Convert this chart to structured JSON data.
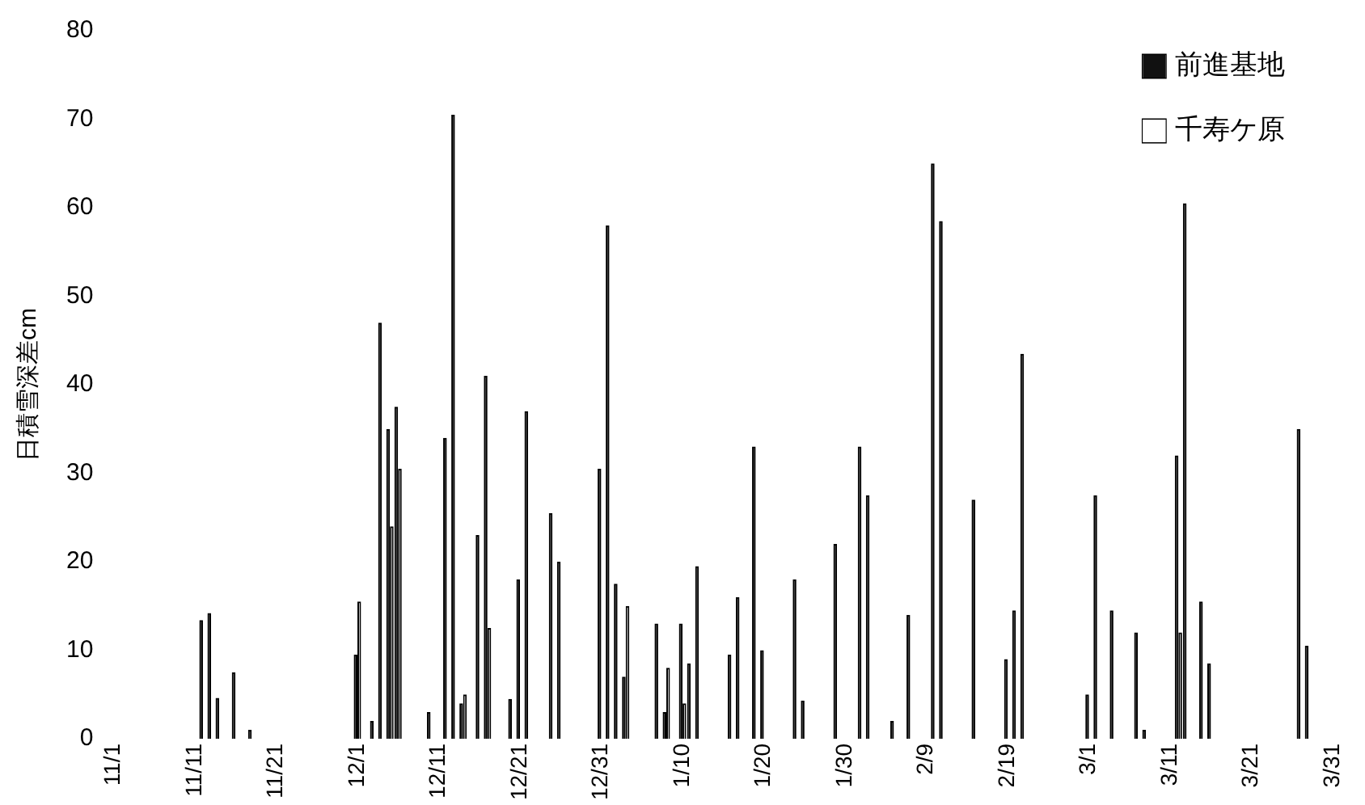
{
  "chart_data": {
    "type": "bar",
    "ylabel": "日積雪深差cm",
    "categories": [
      "11/1",
      null,
      null,
      null,
      null,
      null,
      null,
      null,
      null,
      null,
      "11/11",
      null,
      null,
      null,
      null,
      null,
      null,
      null,
      null,
      null,
      "11/21",
      null,
      null,
      null,
      null,
      null,
      null,
      null,
      null,
      null,
      "12/1",
      null,
      null,
      null,
      null,
      null,
      null,
      null,
      null,
      null,
      "12/11",
      null,
      null,
      null,
      null,
      null,
      null,
      null,
      null,
      null,
      "12/21",
      null,
      null,
      null,
      null,
      null,
      null,
      null,
      null,
      null,
      "12/31",
      null,
      null,
      null,
      null,
      null,
      null,
      null,
      null,
      null,
      "1/10",
      null,
      null,
      null,
      null,
      null,
      null,
      null,
      null,
      null,
      "1/20",
      null,
      null,
      null,
      null,
      null,
      null,
      null,
      null,
      null,
      "1/30",
      null,
      null,
      null,
      null,
      null,
      null,
      null,
      null,
      null,
      "2/9",
      null,
      null,
      null,
      null,
      null,
      null,
      null,
      null,
      null,
      "2/19",
      null,
      null,
      null,
      null,
      null,
      null,
      null,
      null,
      null,
      "3/1",
      null,
      null,
      null,
      null,
      null,
      null,
      null,
      null,
      null,
      "3/11",
      null,
      null,
      null,
      null,
      null,
      null,
      null,
      null,
      null,
      "3/21",
      null,
      null,
      null,
      null,
      null,
      null,
      null,
      null,
      null,
      "3/31"
    ],
    "series": [
      {
        "name": "前進基地",
        "color": "#111111",
        "values": [
          null,
          null,
          null,
          null,
          null,
          null,
          null,
          null,
          null,
          null,
          null,
          13.4,
          14.2,
          4.6,
          0,
          7.5,
          0,
          1,
          0,
          0,
          0,
          0,
          0,
          0,
          0,
          0,
          0,
          0,
          0,
          0,
          9.5,
          0,
          2,
          47,
          35,
          37.5,
          0,
          0,
          0,
          3,
          0,
          34,
          70.5,
          4,
          0,
          23,
          41,
          0,
          0,
          4.5,
          18,
          37,
          0,
          0,
          25.5,
          20,
          0,
          0,
          0,
          0,
          30.5,
          58,
          17.5,
          7,
          0,
          0,
          0,
          13,
          3,
          0,
          13,
          8.5,
          19.5,
          0,
          0,
          0,
          9.5,
          16,
          0,
          33,
          10,
          0,
          0,
          0,
          18,
          4.3,
          0,
          0,
          0,
          22,
          0,
          0,
          33,
          27.5,
          0,
          0,
          2,
          0,
          14,
          0,
          0,
          65,
          58.5,
          0,
          0,
          0,
          27,
          0,
          0,
          0,
          9,
          14.5,
          43.5,
          0,
          0,
          0,
          0,
          0,
          0,
          0,
          5,
          27.5,
          0,
          14.5,
          0,
          0,
          12,
          1,
          0,
          0,
          0,
          32,
          60.5,
          0,
          15.5,
          8.5,
          0,
          0,
          0,
          0,
          0,
          0,
          0,
          0,
          0,
          0,
          35,
          10.5,
          0,
          0,
          0
        ]
      },
      {
        "name": "千寿ケ原",
        "color": "#ffffff",
        "values": [
          null,
          null,
          null,
          null,
          null,
          null,
          null,
          null,
          null,
          null,
          null,
          0,
          0,
          0,
          0,
          0,
          0,
          0,
          0,
          0,
          0,
          0,
          0,
          0,
          0,
          0,
          0,
          0,
          0,
          0,
          15.5,
          0,
          0,
          0,
          24,
          30.5,
          0,
          0,
          0,
          0,
          0,
          0,
          0,
          5,
          0,
          0,
          12.5,
          0,
          0,
          0,
          0,
          0,
          0,
          0,
          0,
          0,
          0,
          0,
          0,
          0,
          0,
          0,
          0,
          15,
          0,
          0,
          0,
          0,
          8,
          0,
          4,
          0,
          0,
          0,
          0,
          0,
          0,
          0,
          0,
          0,
          0,
          0,
          0,
          0,
          0,
          0,
          0,
          0,
          0,
          0,
          0,
          0,
          0,
          0,
          0,
          0,
          0,
          0,
          0,
          0,
          0,
          0,
          0,
          0,
          0,
          0,
          0,
          0,
          0,
          0,
          0,
          0,
          0,
          0,
          0,
          0,
          0,
          0,
          0,
          0,
          0,
          0,
          0,
          0,
          0,
          0,
          0,
          0,
          0,
          0,
          0,
          12,
          0,
          0,
          0,
          0,
          0,
          0,
          0,
          0,
          0,
          0,
          0,
          0,
          0,
          0,
          0,
          0,
          0,
          0,
          0
        ]
      }
    ],
    "ylim": [
      0,
      80
    ],
    "yticks": [
      0,
      10,
      20,
      30,
      40,
      50,
      60,
      70,
      80
    ],
    "grid": false,
    "legend": "top right"
  }
}
